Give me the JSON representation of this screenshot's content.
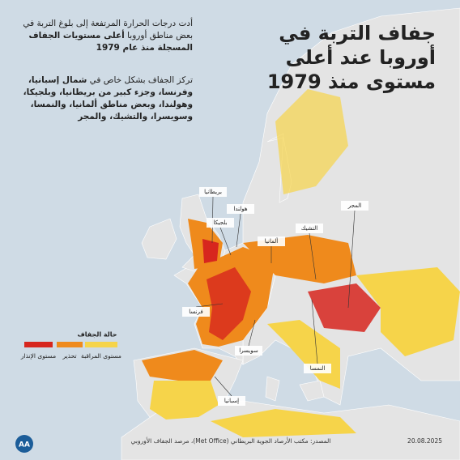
{
  "header": {
    "title": "جفاف التربة في أوروبا عند أعلى مستوى منذ 1979"
  },
  "intro": {
    "text": "أدت درجات الحرارة المرتفعة إلى بلوغ التربة في بعض مناطق أوروبا",
    "highlight": "أعلى مستويات الجفاف المسجلة منذ عام 1979"
  },
  "detail": {
    "lead": "تركز الجفاف بشكل خاص في",
    "highlight": "شمال إسبانيا، وفرنسا، وجزء كبير من بريطانيا، وبلجيكا، وهولندا، وبعض مناطق ألمانيا، والنمسا، وسويسرا، والتشيك، والمجر"
  },
  "labels": [
    "بريطانيا",
    "هولندا",
    "بلجيكا",
    "ألمانيا",
    "التشيك",
    "المجر",
    "فرنسا",
    "سويسرا",
    "النمسا",
    "إسبانيا"
  ],
  "legend": {
    "title": "حالة الجفاف",
    "items": [
      {
        "label": "مستوى الإنذار",
        "color": "#d7261e"
      },
      {
        "label": "تحذير",
        "color": "#ef8a1c"
      },
      {
        "label": "مستوى المراقبة",
        "color": "#f6d44a"
      }
    ]
  },
  "footer": {
    "source": "المصدر: مكتب الأرصاد الجوية البريطاني (Met Office)، مرصد الجفاف الأوروبي",
    "date": "20.08.2025",
    "logo": "AA"
  }
}
